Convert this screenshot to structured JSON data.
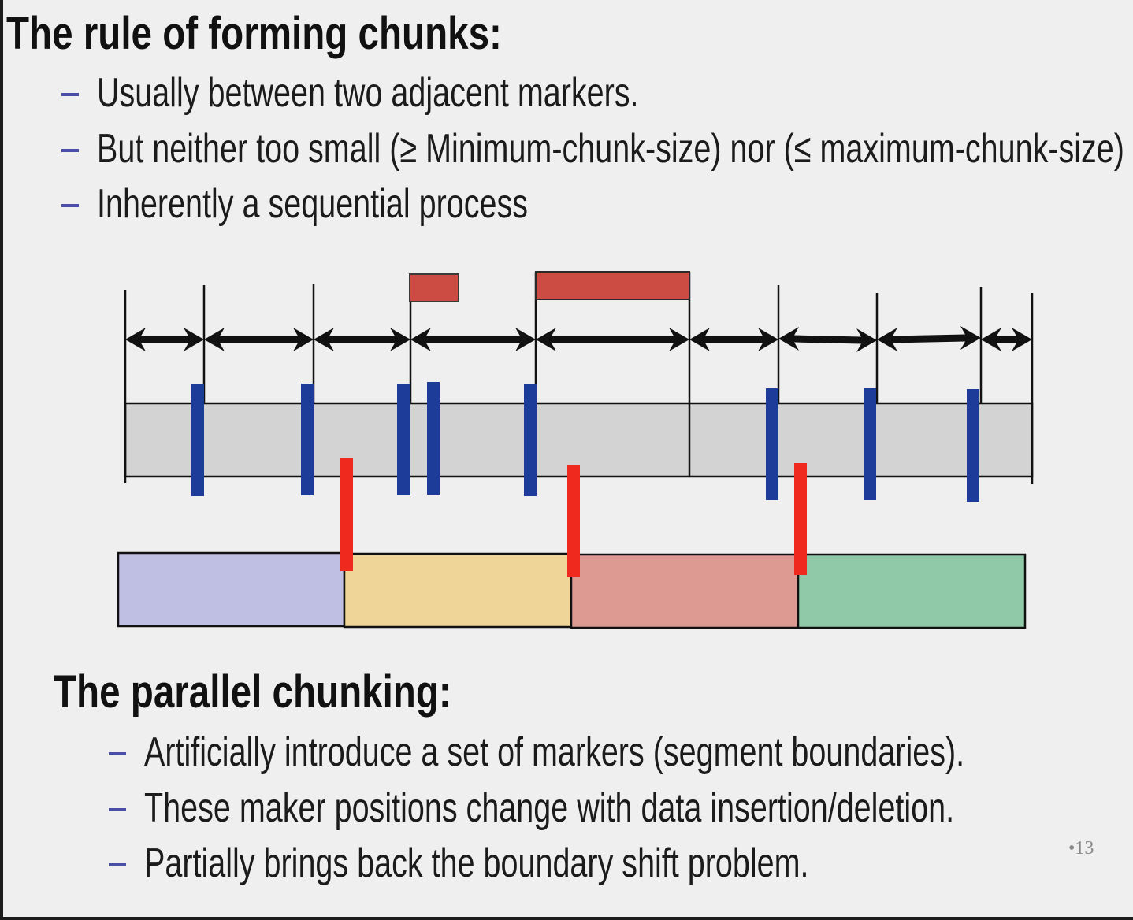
{
  "sections": [
    {
      "title": "The rule of forming chunks:",
      "bullets": [
        "Usually between two adjacent markers.",
        "But neither too small (≥ Minimum-chunk-size) nor (≤ maximum-chunk-size)",
        "Inherently a sequential process"
      ]
    },
    {
      "title": "The parallel chunking:",
      "bullets": [
        "Artificially introduce a set of markers (segment boundaries).",
        "These maker positions change with data insertion/deletion.",
        "Partially brings back the boundary shift problem."
      ]
    }
  ],
  "slide_number": "•13",
  "diagram_colors": {
    "size_limit_box": "#cc4b43",
    "data_stream_bar": "#d3d3d3",
    "content_marker": "#1d3c99",
    "segment_marker": "#f0291f",
    "arrow": "#111111",
    "segments": [
      "#bfbfe3",
      "#efd597",
      "#dc9a93",
      "#8fc9a8"
    ]
  }
}
